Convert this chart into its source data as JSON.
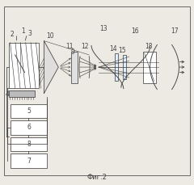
{
  "bg": "#ede9e3",
  "lc": "#444444",
  "lw": 0.55,
  "fig_w": 2.4,
  "fig_h": 2.29,
  "caption": "Фиг.2"
}
